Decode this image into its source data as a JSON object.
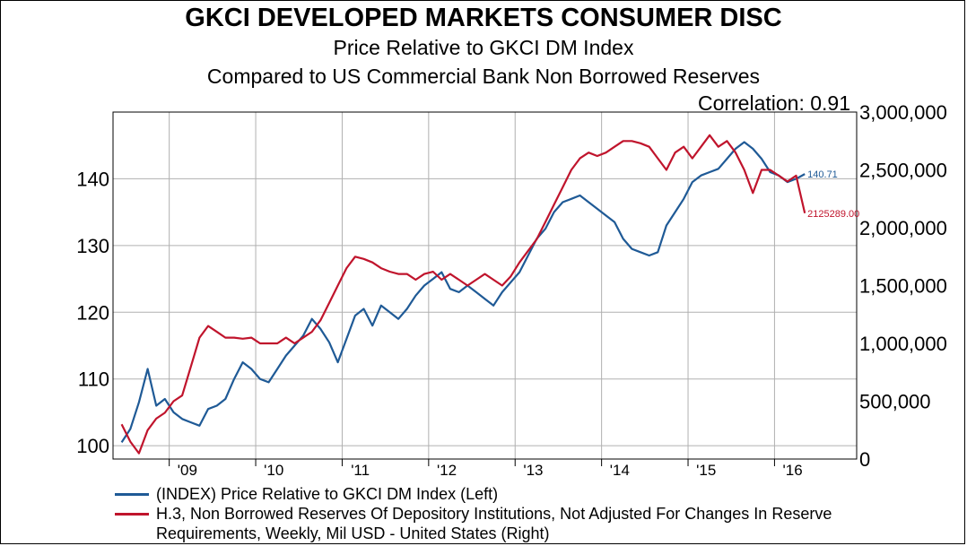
{
  "chart_data": {
    "type": "line",
    "title": "GKCI DEVELOPED MARKETS CONSUMER DISC",
    "subtitle_1": "Price Relative to GKCI DM Index",
    "subtitle_2": "Compared to US Commercial Bank Non Borrowed Reserves",
    "annotation": "Correlation: 0.91",
    "x_range": [
      2008.35,
      2016.95
    ],
    "x_ticks": [
      "'09",
      "'10",
      "'11",
      "'12",
      "'13",
      "'14",
      "'15",
      "'16"
    ],
    "y_left": {
      "range": [
        98,
        150
      ],
      "ticks": [
        100,
        110,
        120,
        130,
        140
      ],
      "tick_labels": [
        "100",
        "110",
        "120",
        "130",
        "140"
      ]
    },
    "y_right": {
      "range": [
        0,
        3000000
      ],
      "ticks": [
        0,
        500000,
        1000000,
        1500000,
        2000000,
        2500000,
        3000000
      ],
      "tick_labels": [
        "0",
        "500,000",
        "1,000,000",
        "1,500,000",
        "2,000,000",
        "2,500,000",
        "3,000,000"
      ]
    },
    "grid": true,
    "legend_position": "bottom",
    "series": [
      {
        "name": "(INDEX) Price Relative to GKCI DM Index  (Left)",
        "axis": "left",
        "color": "#1f5a96",
        "end_label": "140.71",
        "x": [
          2008.45,
          2008.55,
          2008.65,
          2008.75,
          2008.85,
          2008.95,
          2009.05,
          2009.15,
          2009.25,
          2009.35,
          2009.45,
          2009.55,
          2009.65,
          2009.75,
          2009.85,
          2009.95,
          2010.05,
          2010.15,
          2010.25,
          2010.35,
          2010.45,
          2010.55,
          2010.65,
          2010.75,
          2010.85,
          2010.95,
          2011.05,
          2011.15,
          2011.25,
          2011.35,
          2011.45,
          2011.55,
          2011.65,
          2011.75,
          2011.85,
          2011.95,
          2012.05,
          2012.15,
          2012.25,
          2012.35,
          2012.45,
          2012.55,
          2012.65,
          2012.75,
          2012.85,
          2012.95,
          2013.05,
          2013.15,
          2013.25,
          2013.35,
          2013.45,
          2013.55,
          2013.65,
          2013.75,
          2013.85,
          2013.95,
          2014.05,
          2014.15,
          2014.25,
          2014.35,
          2014.45,
          2014.55,
          2014.65,
          2014.75,
          2014.85,
          2014.95,
          2015.05,
          2015.15,
          2015.25,
          2015.35,
          2015.45,
          2015.55,
          2015.65,
          2015.75,
          2015.85,
          2015.95,
          2016.05,
          2016.15,
          2016.25,
          2016.35
        ],
        "y": [
          100.5,
          102.5,
          106.5,
          111.5,
          106.0,
          107.0,
          105.0,
          104.0,
          103.5,
          103.0,
          105.5,
          106.0,
          107.0,
          110.0,
          112.5,
          111.5,
          110.0,
          109.5,
          111.5,
          113.5,
          115.0,
          116.5,
          119.0,
          117.5,
          115.5,
          112.5,
          116.0,
          119.5,
          120.5,
          118.0,
          121.0,
          120.0,
          119.0,
          120.5,
          122.5,
          124.0,
          125.0,
          126.0,
          123.5,
          123.0,
          124.0,
          123.0,
          122.0,
          121.0,
          123.0,
          124.5,
          126.0,
          128.5,
          131.0,
          132.5,
          135.0,
          136.5,
          137.0,
          137.5,
          136.5,
          135.5,
          134.5,
          133.5,
          131.0,
          129.5,
          129.0,
          128.5,
          129.0,
          133.0,
          135.0,
          137.0,
          139.5,
          140.5,
          141.0,
          141.5,
          143.0,
          144.5,
          145.5,
          144.5,
          143.0,
          141.0,
          140.5,
          139.5,
          140.0,
          140.71
        ]
      },
      {
        "name": "H.3, Non Borrowed Reserves Of Depository Institutions, Not Adjusted For Changes In Reserve Requirements, Weekly, Mil USD - United States  (Right)",
        "axis": "right",
        "color": "#c0142c",
        "end_label": "2125289.00",
        "x": [
          2008.45,
          2008.55,
          2008.65,
          2008.75,
          2008.85,
          2008.95,
          2009.05,
          2009.15,
          2009.25,
          2009.35,
          2009.45,
          2009.55,
          2009.65,
          2009.75,
          2009.85,
          2009.95,
          2010.05,
          2010.15,
          2010.25,
          2010.35,
          2010.45,
          2010.55,
          2010.65,
          2010.75,
          2010.85,
          2010.95,
          2011.05,
          2011.15,
          2011.25,
          2011.35,
          2011.45,
          2011.55,
          2011.65,
          2011.75,
          2011.85,
          2011.95,
          2012.05,
          2012.15,
          2012.25,
          2012.35,
          2012.45,
          2012.55,
          2012.65,
          2012.75,
          2012.85,
          2012.95,
          2013.05,
          2013.15,
          2013.25,
          2013.35,
          2013.45,
          2013.55,
          2013.65,
          2013.75,
          2013.85,
          2013.95,
          2014.05,
          2014.15,
          2014.25,
          2014.35,
          2014.45,
          2014.55,
          2014.65,
          2014.75,
          2014.85,
          2014.95,
          2015.05,
          2015.15,
          2015.25,
          2015.35,
          2015.45,
          2015.55,
          2015.65,
          2015.75,
          2015.85,
          2015.95,
          2016.05,
          2016.15,
          2016.25,
          2016.35
        ],
        "y": [
          300000,
          150000,
          50000,
          250000,
          350000,
          400000,
          500000,
          550000,
          800000,
          1050000,
          1150000,
          1100000,
          1050000,
          1050000,
          1040000,
          1050000,
          1000000,
          1000000,
          1000000,
          1050000,
          1000000,
          1050000,
          1100000,
          1200000,
          1350000,
          1500000,
          1650000,
          1750000,
          1730000,
          1700000,
          1650000,
          1620000,
          1600000,
          1600000,
          1550000,
          1600000,
          1620000,
          1550000,
          1600000,
          1550000,
          1500000,
          1550000,
          1600000,
          1550000,
          1500000,
          1580000,
          1700000,
          1800000,
          1900000,
          2050000,
          2200000,
          2350000,
          2500000,
          2600000,
          2650000,
          2620000,
          2650000,
          2700000,
          2750000,
          2750000,
          2730000,
          2700000,
          2600000,
          2500000,
          2650000,
          2700000,
          2600000,
          2700000,
          2800000,
          2700000,
          2750000,
          2650000,
          2500000,
          2300000,
          2500000,
          2500000,
          2450000,
          2400000,
          2450000,
          2125289
        ]
      }
    ]
  }
}
